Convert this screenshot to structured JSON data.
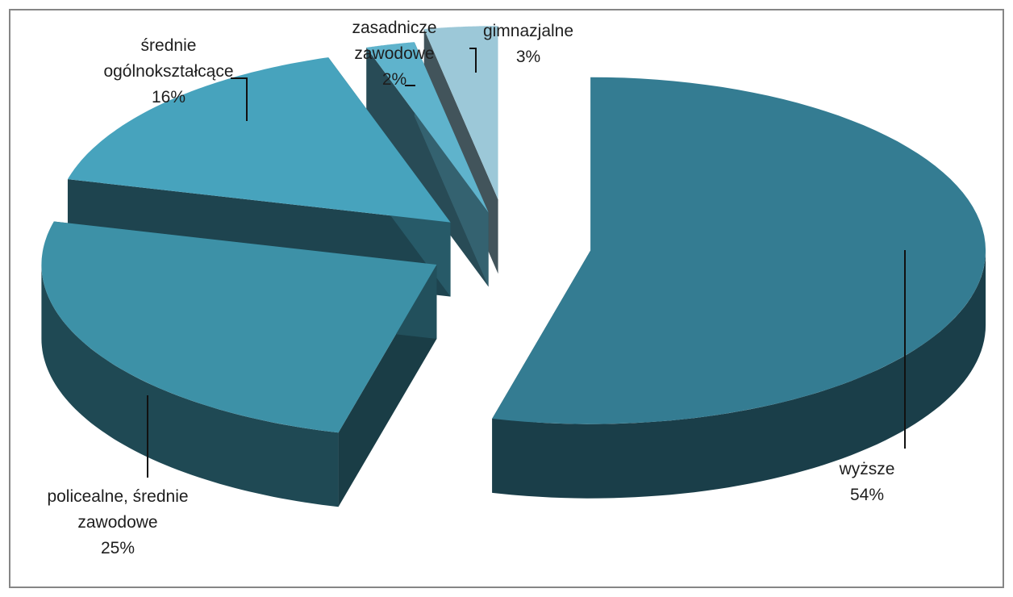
{
  "chart_data": {
    "type": "pie",
    "title": "",
    "slices": [
      {
        "label": "wyższe",
        "value": 54,
        "value_label": "54%",
        "color": "#347c92"
      },
      {
        "label": "policealne, średnie zawodowe",
        "value": 25,
        "value_label": "25%",
        "color": "#3d91a7"
      },
      {
        "label": "średnie ogólnokształcące",
        "value": 16,
        "value_label": "16%",
        "color": "#47a3bd"
      },
      {
        "label": "zasadnicze zawodowe",
        "value": 2,
        "value_label": "2%",
        "color": "#5fb3cc"
      },
      {
        "label": "gimnazjalne",
        "value": 3,
        "value_label": "3%",
        "color": "#9cc8d8"
      }
    ],
    "style": "3d-exploded",
    "legend": "none",
    "data_labels": "category name and percentage, outside with leader lines"
  }
}
